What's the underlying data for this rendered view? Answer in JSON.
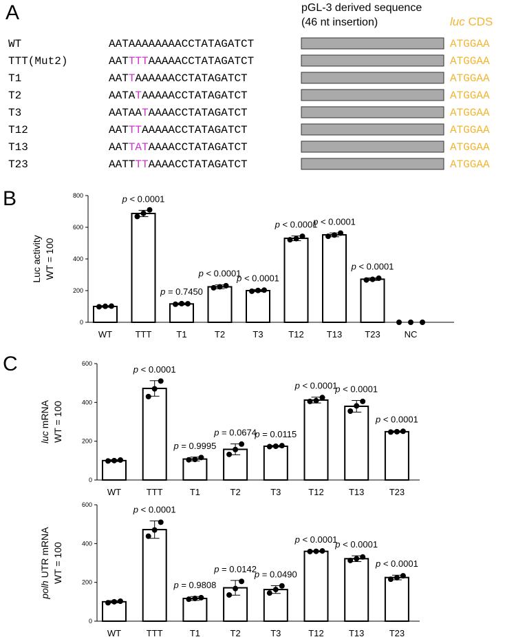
{
  "panel_a": {
    "letter": "A",
    "header_insert_line1": "pGL-3 derived sequence",
    "header_insert_line2": "(46 nt insertion)",
    "header_cds_italic": "luc",
    "header_cds_rest": " CDS",
    "cds_seq": "ATGGAA",
    "rows": [
      {
        "name": "WT",
        "pre": "AATAAAAAAAACCTATAGATCT",
        "hl": "",
        "post": ""
      },
      {
        "name": "TTT(Mut2)",
        "pre": "AAT",
        "hl": "TTT",
        "post": "AAAAACCTATAGATCT"
      },
      {
        "name": "T1",
        "pre": "AAT",
        "hl": "T",
        "post": "AAAAAACCTATAGATCT"
      },
      {
        "name": "T2",
        "pre": "AATA",
        "hl": "T",
        "post": "AAAAACCTATAGATCT"
      },
      {
        "name": "T3",
        "pre": "AATAA",
        "hl": "T",
        "post": "AAAACCTATAGATCT"
      },
      {
        "name": "T12",
        "pre": "AAT",
        "hl": "TT",
        "post": "AAAAACCTATAGATCT"
      },
      {
        "name": "T13",
        "pre": "AAT",
        "hl": "TAT",
        "post": "AAAACCTATAGATCT"
      },
      {
        "name": "T23",
        "pre": "AATT",
        "hl": "TT",
        "post": "AAAACCTATAGATCT"
      }
    ]
  },
  "panel_b_letter": "B",
  "panel_c_letter": "C",
  "chart_data": [
    {
      "type": "bar",
      "id": "luc-activity",
      "ylabel_line1": "Luc activity",
      "ylabel_line2": "WT = 100",
      "ylabel_italic_prefix": "",
      "ylim": [
        0,
        800
      ],
      "yticks": [
        0,
        200,
        400,
        600,
        800
      ],
      "categories": [
        "WT",
        "TTT",
        "T1",
        "T2",
        "T3",
        "T12",
        "T13",
        "T23",
        "NC"
      ],
      "values": [
        100,
        687,
        116,
        224,
        200,
        530,
        552,
        272,
        0
      ],
      "errors": [
        5,
        20,
        6,
        12,
        7,
        15,
        12,
        8,
        0
      ],
      "points": [
        [
          98,
          101,
          102
        ],
        [
          668,
          688,
          710
        ],
        [
          114,
          118,
          117
        ],
        [
          218,
          224,
          231
        ],
        [
          196,
          201,
          203
        ],
        [
          521,
          528,
          543
        ],
        [
          543,
          551,
          563
        ],
        [
          267,
          271,
          278
        ],
        [
          0,
          0,
          0
        ]
      ],
      "p_values": [
        "",
        "p < 0.0001",
        "p = 0.7450",
        "p < 0.0001",
        "p < 0.0001",
        "p < 0.0001",
        "p < 0.0001",
        "p < 0.0001",
        ""
      ]
    },
    {
      "type": "bar",
      "id": "luc-mrna",
      "ylabel_line1": " mRNA",
      "ylabel_line2": "WT = 100",
      "ylabel_italic_prefix": "luc",
      "ylim": [
        0,
        600
      ],
      "yticks": [
        0,
        200,
        400,
        600
      ],
      "categories": [
        "WT",
        "TTT",
        "T1",
        "T2",
        "T3",
        "T12",
        "T13",
        "T23"
      ],
      "values": [
        100,
        472,
        108,
        158,
        174,
        412,
        380,
        249
      ],
      "errors": [
        5,
        40,
        10,
        28,
        4,
        15,
        30,
        4
      ],
      "points": [
        [
          98,
          100,
          103
        ],
        [
          430,
          470,
          510
        ],
        [
          104,
          106,
          116
        ],
        [
          132,
          157,
          185
        ],
        [
          172,
          174,
          177
        ],
        [
          405,
          409,
          425
        ],
        [
          355,
          382,
          405
        ],
        [
          247,
          249,
          251
        ]
      ],
      "p_values": [
        "",
        "p < 0.0001",
        "p = 0.9995",
        "p = 0.0674",
        "p = 0.0115",
        "p < 0.0001",
        "p < 0.0001",
        "p < 0.0001"
      ]
    },
    {
      "type": "bar",
      "id": "polh-utr-mrna",
      "ylabel_line1": " UTR mRNA",
      "ylabel_line2": "WT = 100",
      "ylabel_italic_prefix": "polh",
      "ylim": [
        0,
        600
      ],
      "yticks": [
        0,
        200,
        400,
        600
      ],
      "categories": [
        "WT",
        "TTT",
        "T1",
        "T2",
        "T3",
        "T12",
        "T13",
        "T23"
      ],
      "values": [
        100,
        472,
        117,
        172,
        163,
        360,
        322,
        225
      ],
      "errors": [
        6,
        45,
        10,
        38,
        20,
        3,
        15,
        12
      ],
      "points": [
        [
          95,
          100,
          103
        ],
        [
          438,
          470,
          510
        ],
        [
          113,
          117,
          121
        ],
        [
          135,
          168,
          205
        ],
        [
          145,
          163,
          182
        ],
        [
          359,
          360,
          362
        ],
        [
          313,
          322,
          331
        ],
        [
          216,
          224,
          234
        ]
      ],
      "p_values": [
        "",
        "p < 0.0001",
        "p = 0.9808",
        "p = 0.0142",
        "p = 0.0490",
        "p < 0.0001",
        "p < 0.0001",
        "p < 0.0001"
      ]
    }
  ]
}
